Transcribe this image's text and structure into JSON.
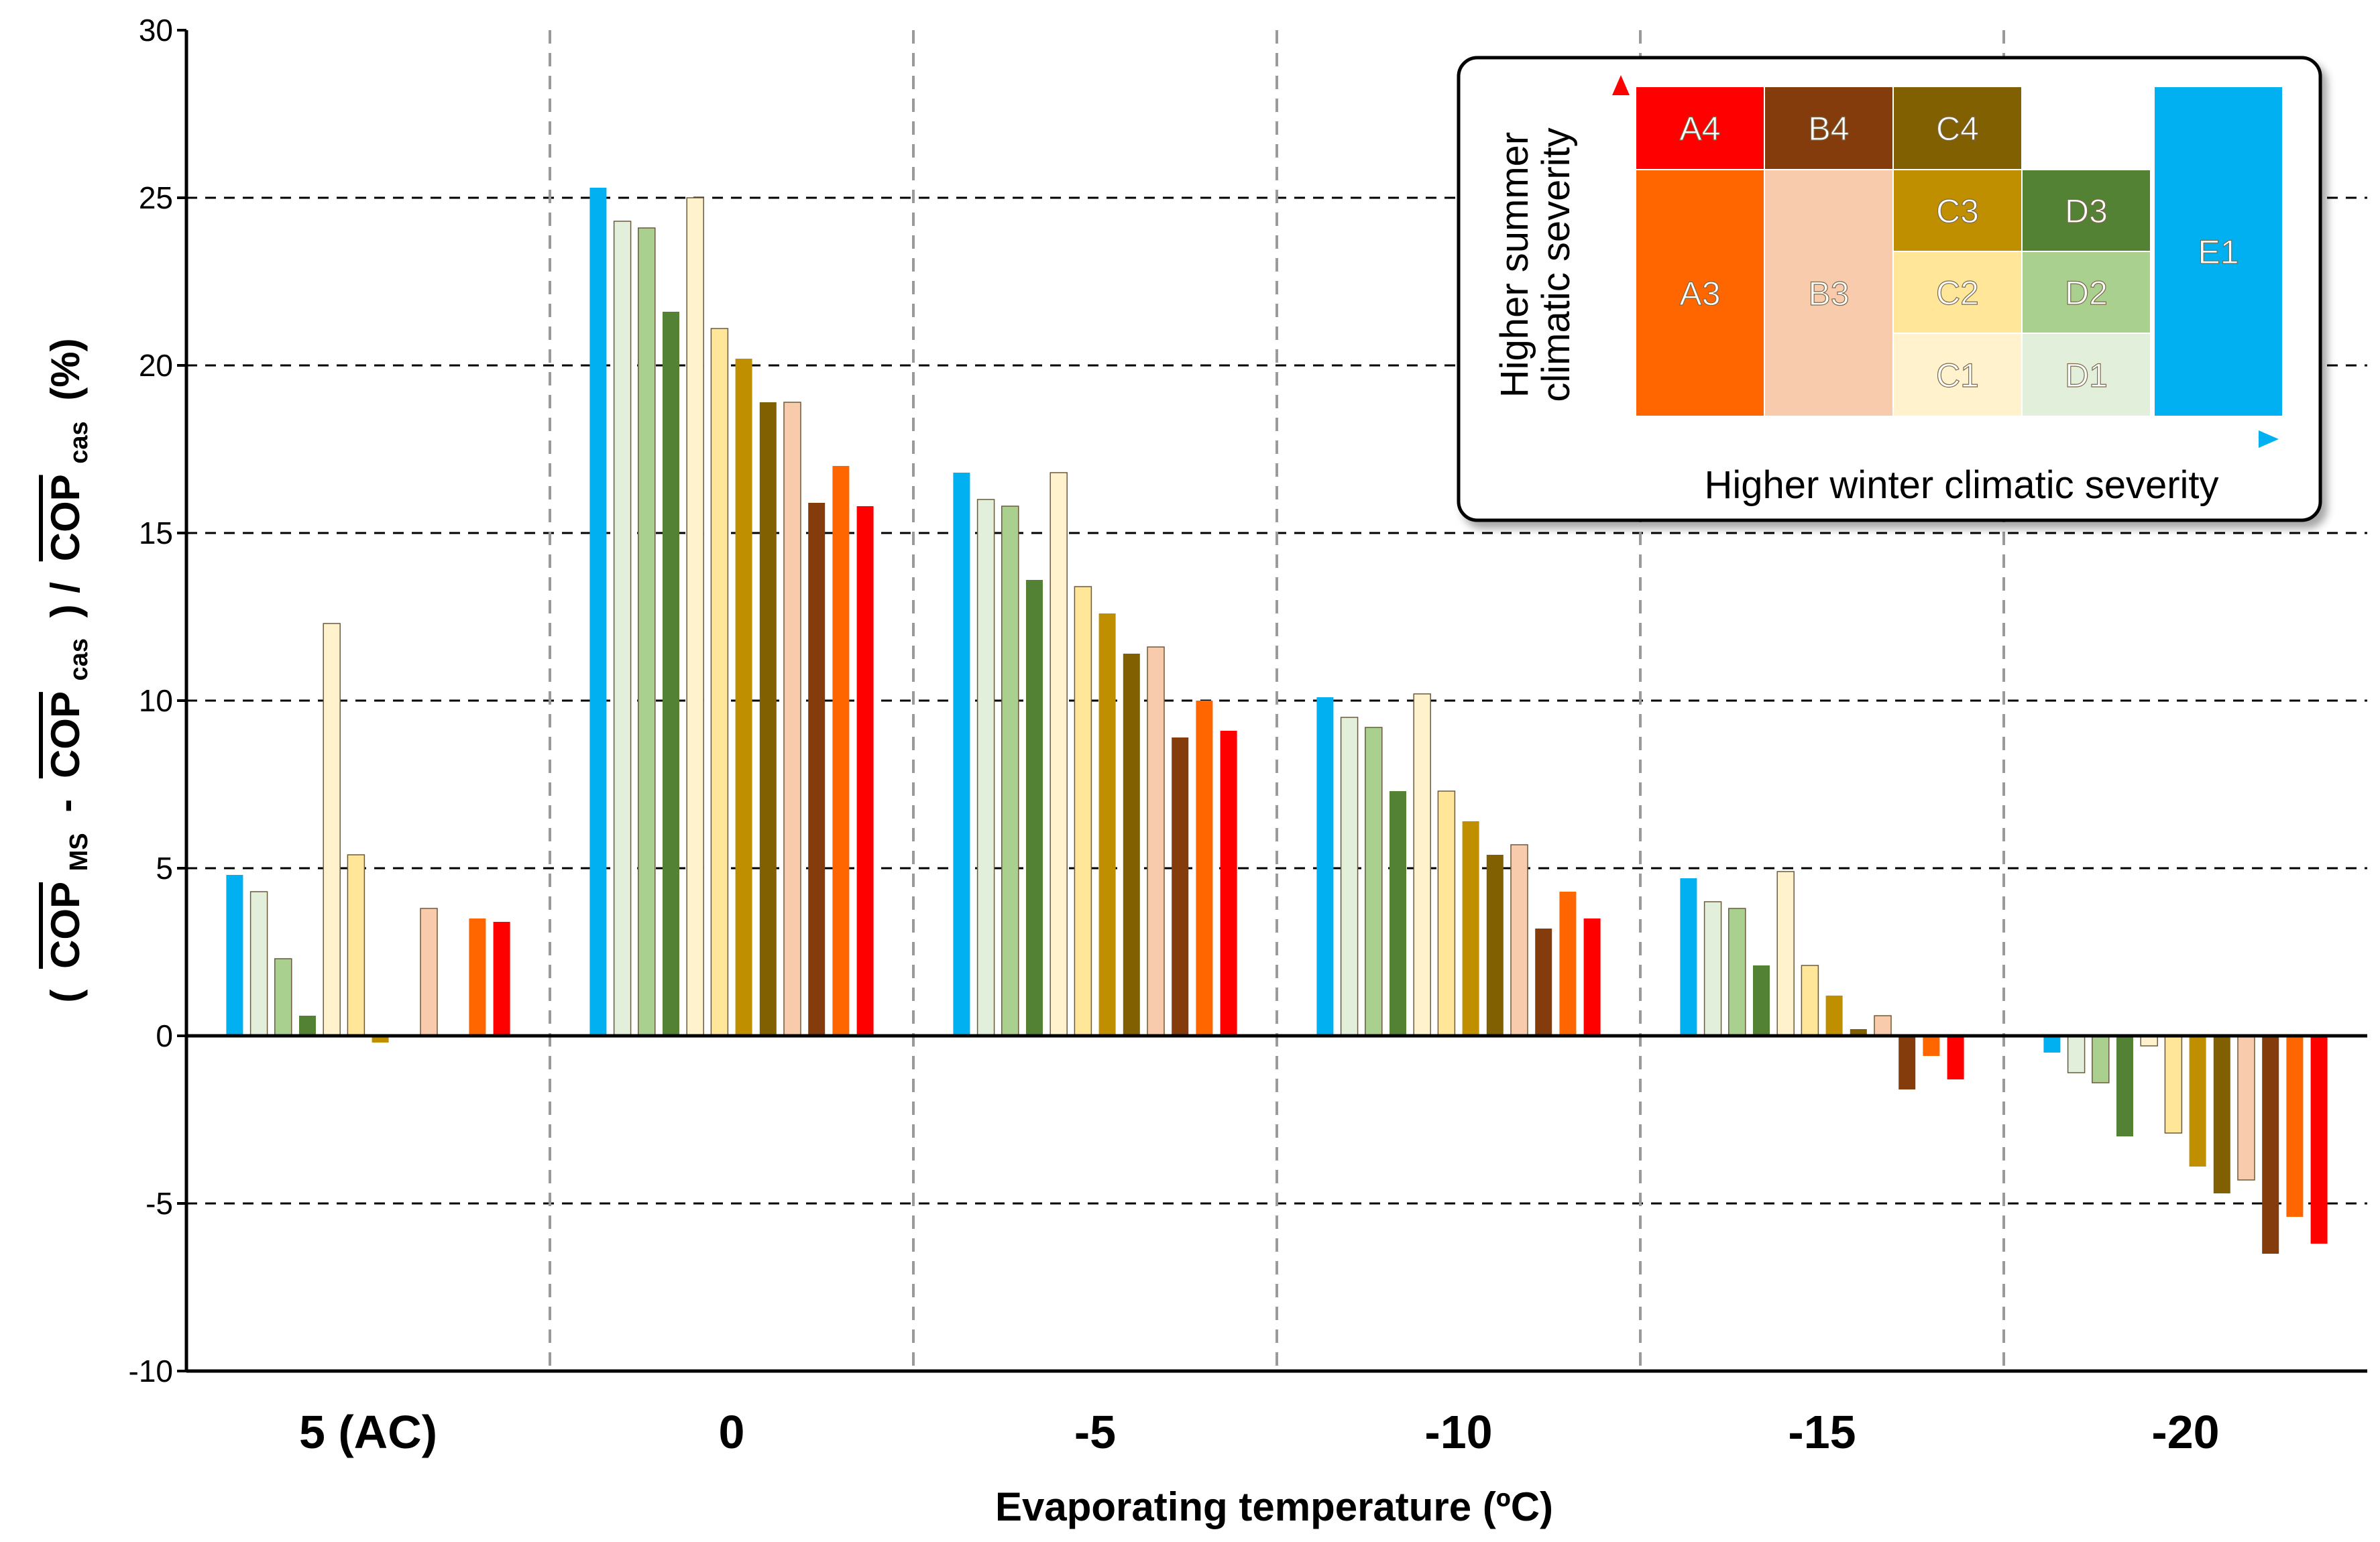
{
  "chart_data": {
    "type": "bar",
    "title": "",
    "xlabel": "Evaporating temperature (ºC)",
    "ylabel": {
      "text": "( COP_MS - COP_cas ) / COP_cas (%)",
      "open_paren": "(",
      "cop": "COP",
      "ms": "MS",
      "minus": "-",
      "cas": "cas",
      "close_div": ") /",
      "percent": "(%)"
    },
    "ylim": [
      -10,
      30
    ],
    "yticks": [
      "-10",
      "-5",
      "0",
      "5",
      "10",
      "15",
      "20",
      "25",
      "30"
    ],
    "grid": "horizontal dashed",
    "categories": [
      "5 (AC)",
      "0",
      "-5",
      "-10",
      "-15",
      "-20"
    ],
    "series": [
      {
        "name": "E1",
        "color": "#00B0F0",
        "values": [
          4.8,
          25.3,
          16.8,
          10.1,
          4.7,
          -0.5
        ]
      },
      {
        "name": "D1",
        "color": "#E2EFDA",
        "values": [
          4.3,
          24.3,
          16.0,
          9.5,
          4.0,
          -1.1
        ]
      },
      {
        "name": "D2",
        "color": "#A9D08E",
        "values": [
          2.3,
          24.1,
          15.8,
          9.2,
          3.8,
          -1.4
        ]
      },
      {
        "name": "D3",
        "color": "#548235",
        "values": [
          0.6,
          21.6,
          13.6,
          7.3,
          2.1,
          -3.0
        ]
      },
      {
        "name": "C1",
        "color": "#FFF2CC",
        "values": [
          12.3,
          25.0,
          16.8,
          10.2,
          4.9,
          -0.3
        ]
      },
      {
        "name": "C2",
        "color": "#FFE699",
        "values": [
          5.4,
          21.1,
          13.4,
          7.3,
          2.1,
          -2.9
        ]
      },
      {
        "name": "C3",
        "color": "#BF8F00",
        "values": [
          -0.2,
          20.2,
          12.6,
          6.4,
          1.2,
          -3.9
        ]
      },
      {
        "name": "C4",
        "color": "#806000",
        "values": [
          null,
          18.9,
          11.4,
          5.4,
          0.2,
          -4.7
        ]
      },
      {
        "name": "B3",
        "color": "#F8CBAD",
        "values": [
          3.8,
          18.9,
          11.6,
          5.7,
          0.6,
          -4.3
        ]
      },
      {
        "name": "B4",
        "color": "#843C0C",
        "values": [
          null,
          15.9,
          8.9,
          3.2,
          -1.6,
          -6.5
        ]
      },
      {
        "name": "A3",
        "color": "#FF6600",
        "values": [
          3.5,
          17.0,
          10.0,
          4.3,
          -0.6,
          -5.4
        ]
      },
      {
        "name": "A4",
        "color": "#FF0000",
        "values": [
          3.4,
          15.8,
          9.1,
          3.5,
          -1.3,
          -6.2
        ]
      }
    ],
    "legend": {
      "position": "top-right",
      "x_axis_label": "Higher winter climatic severity",
      "y_axis_label_line1": "Higher summer",
      "y_axis_label_line2": "climatic severity",
      "cells": [
        {
          "label": "A4",
          "color": "#FF0000",
          "col": 0,
          "row": 0,
          "rows": 1,
          "dark_text": false
        },
        {
          "label": "B4",
          "color": "#843C0C",
          "col": 1,
          "row": 0,
          "rows": 1,
          "dark_text": false
        },
        {
          "label": "C4",
          "color": "#806000",
          "col": 2,
          "row": 0,
          "rows": 1,
          "dark_text": false
        },
        {
          "label": "A3",
          "color": "#FF6600",
          "col": 0,
          "row": 1,
          "rows": 3,
          "dark_text": false
        },
        {
          "label": "B3",
          "color": "#F8CBAD",
          "col": 1,
          "row": 1,
          "rows": 3,
          "dark_text": false
        },
        {
          "label": "C3",
          "color": "#BF8F00",
          "col": 2,
          "row": 1,
          "rows": 1,
          "dark_text": false
        },
        {
          "label": "C2",
          "color": "#FFE699",
          "col": 2,
          "row": 2,
          "rows": 1,
          "dark_text": false
        },
        {
          "label": "C1",
          "color": "#FFF2CC",
          "col": 2,
          "row": 3,
          "rows": 1,
          "dark_text": false
        },
        {
          "label": "D3",
          "color": "#548235",
          "col": 3,
          "row": 1,
          "rows": 1,
          "dark_text": false
        },
        {
          "label": "D2",
          "color": "#A9D08E",
          "col": 3,
          "row": 2,
          "rows": 1,
          "dark_text": false
        },
        {
          "label": "D1",
          "color": "#E2EFDA",
          "col": 3,
          "row": 3,
          "rows": 1,
          "dark_text": false
        },
        {
          "label": "E1",
          "color": "#00B0F0",
          "col": 4,
          "row": 0,
          "rows": 4,
          "dark_text": false
        }
      ]
    }
  }
}
